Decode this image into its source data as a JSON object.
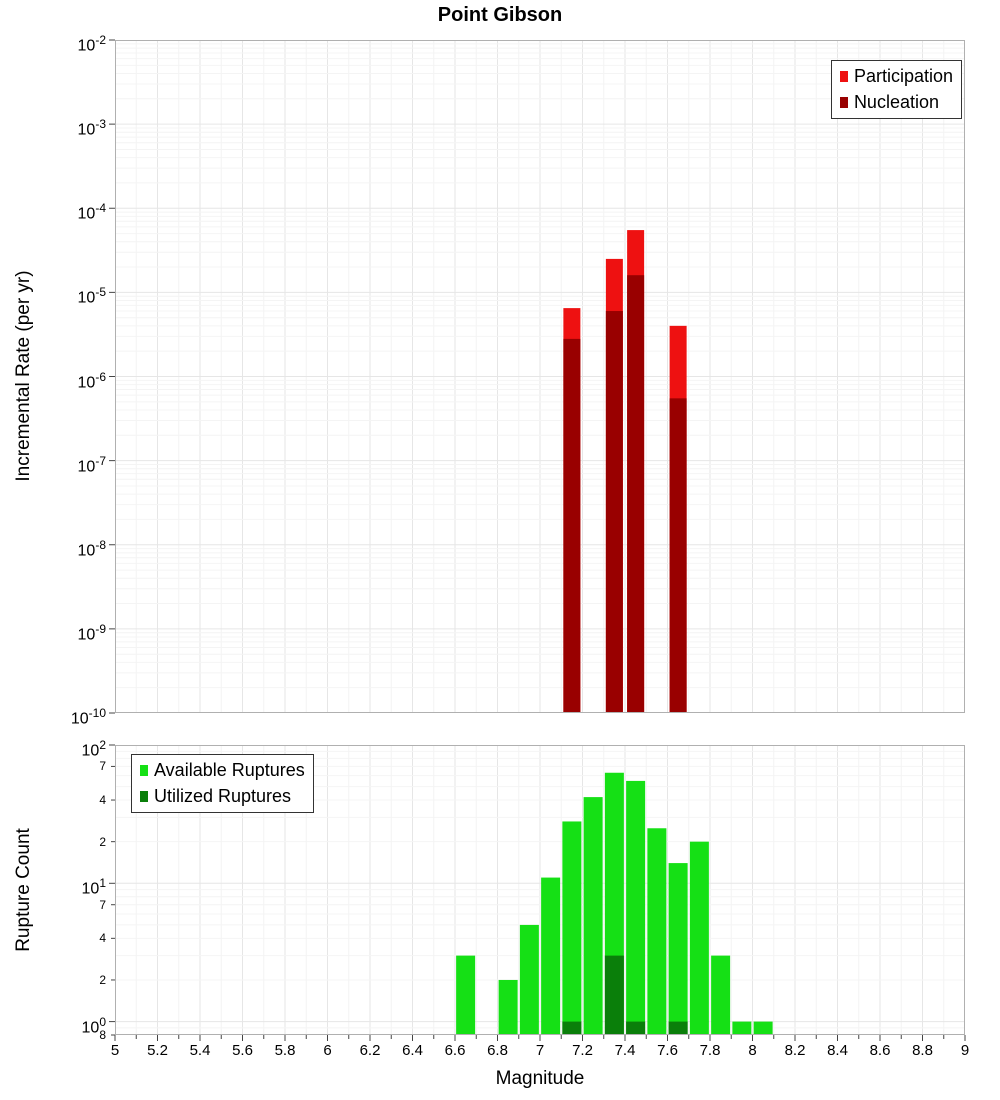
{
  "chart_data": [
    {
      "type": "bar",
      "title": "Point Gibson",
      "ylabel": "Incremental Rate (per yr)",
      "xlabel": "",
      "yscale": "log",
      "xlim": [
        5,
        9
      ],
      "ylim": [
        1e-10,
        0.01
      ],
      "bin_width": 0.1,
      "grid": true,
      "legend_position": "top-right",
      "y_ticks": [
        {
          "v": 0.01,
          "base": "10",
          "exp": "-2"
        },
        {
          "v": 0.001,
          "base": "10",
          "exp": "-3"
        },
        {
          "v": 0.0001,
          "base": "10",
          "exp": "-4"
        },
        {
          "v": 1e-05,
          "base": "10",
          "exp": "-5"
        },
        {
          "v": 1e-06,
          "base": "10",
          "exp": "-6"
        },
        {
          "v": 1e-07,
          "base": "10",
          "exp": "-7"
        },
        {
          "v": 1e-08,
          "base": "10",
          "exp": "-8"
        },
        {
          "v": 1e-09,
          "base": "10",
          "exp": "-9"
        },
        {
          "v": 1e-10,
          "base": "10",
          "exp": "-10"
        }
      ],
      "series": [
        {
          "name": "Participation",
          "color": "#ee1111",
          "x": [
            7.15,
            7.35,
            7.45,
            7.65
          ],
          "values": [
            6.5e-06,
            2.5e-05,
            5.5e-05,
            4e-06
          ]
        },
        {
          "name": "Nucleation",
          "color": "#990000",
          "x": [
            7.15,
            7.35,
            7.45,
            7.65
          ],
          "values": [
            2.8e-06,
            6e-06,
            1.6e-05,
            5.5e-07
          ]
        }
      ]
    },
    {
      "type": "bar",
      "title": "",
      "ylabel": "Rupture Count",
      "xlabel": "Magnitude",
      "yscale": "log",
      "xlim": [
        5,
        9
      ],
      "ylim": [
        0.8,
        100
      ],
      "bin_width": 0.1,
      "grid": true,
      "legend_position": "top-left",
      "y_ticks": [
        {
          "v": 100,
          "base": "10",
          "exp": "2"
        },
        {
          "v": 70,
          "label": "7"
        },
        {
          "v": 40,
          "label": "4"
        },
        {
          "v": 20,
          "label": "2"
        },
        {
          "v": 10,
          "base": "10",
          "exp": "1"
        },
        {
          "v": 7,
          "label": "7"
        },
        {
          "v": 4,
          "label": "4"
        },
        {
          "v": 2,
          "label": "2"
        },
        {
          "v": 1,
          "base": "10",
          "exp": "0"
        },
        {
          "v": 0.8,
          "label": "8"
        }
      ],
      "x_ticks": [
        {
          "v": 5,
          "label": "5"
        },
        {
          "v": 5.2,
          "label": "5.2"
        },
        {
          "v": 5.4,
          "label": "5.4"
        },
        {
          "v": 5.6,
          "label": "5.6"
        },
        {
          "v": 5.8,
          "label": "5.8"
        },
        {
          "v": 6,
          "label": "6"
        },
        {
          "v": 6.2,
          "label": "6.2"
        },
        {
          "v": 6.4,
          "label": "6.4"
        },
        {
          "v": 6.6,
          "label": "6.6"
        },
        {
          "v": 6.8,
          "label": "6.8"
        },
        {
          "v": 7,
          "label": "7"
        },
        {
          "v": 7.2,
          "label": "7.2"
        },
        {
          "v": 7.4,
          "label": "7.4"
        },
        {
          "v": 7.6,
          "label": "7.6"
        },
        {
          "v": 7.8,
          "label": "7.8"
        },
        {
          "v": 8,
          "label": "8"
        },
        {
          "v": 8.2,
          "label": "8.2"
        },
        {
          "v": 8.4,
          "label": "8.4"
        },
        {
          "v": 8.6,
          "label": "8.6"
        },
        {
          "v": 8.8,
          "label": "8.8"
        },
        {
          "v": 9,
          "label": "9"
        }
      ],
      "series": [
        {
          "name": "Available Ruptures",
          "color": "#15e015",
          "x": [
            6.65,
            6.85,
            6.95,
            7.05,
            7.15,
            7.25,
            7.35,
            7.45,
            7.55,
            7.65,
            7.75,
            7.85,
            7.95,
            8.05
          ],
          "values": [
            3,
            2,
            5,
            11,
            28,
            42,
            63,
            55,
            25,
            14,
            20,
            3,
            1,
            1
          ]
        },
        {
          "name": "Utilized Ruptures",
          "color": "#0a7f0a",
          "x": [
            7.15,
            7.35,
            7.45,
            7.65
          ],
          "values": [
            1,
            3,
            1,
            1
          ]
        }
      ]
    }
  ]
}
